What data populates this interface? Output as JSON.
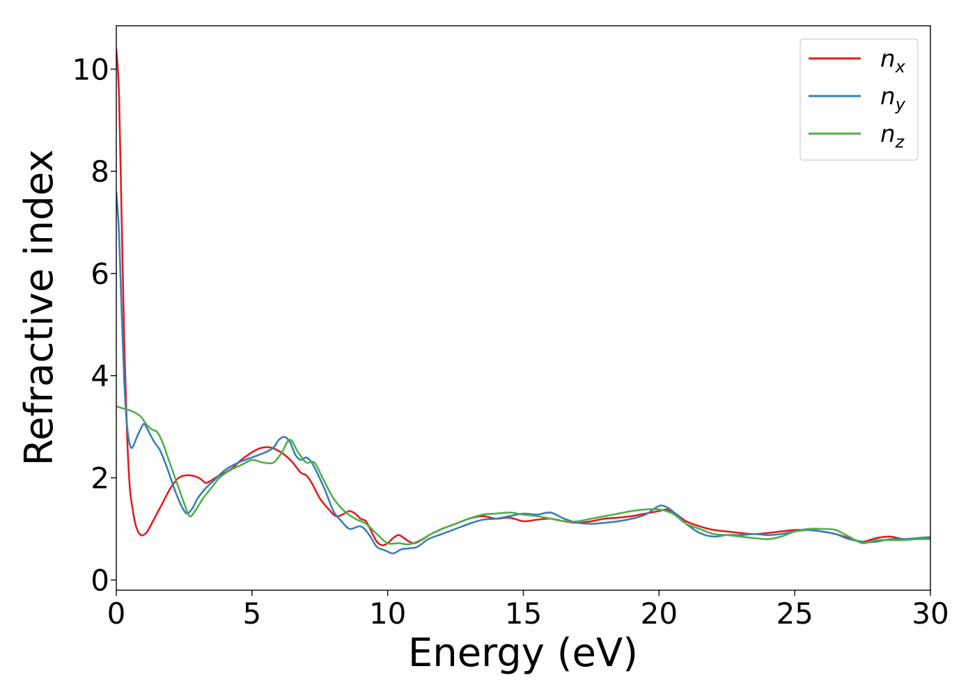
{
  "chart_data": {
    "type": "line",
    "title": "",
    "xlabel": "Energy (eV)",
    "ylabel": "Refractive index",
    "xlim": [
      0,
      30
    ],
    "ylim": [
      -0.2,
      10.85
    ],
    "xticks": [
      0,
      5,
      10,
      15,
      20,
      25,
      30
    ],
    "yticks": [
      0,
      2,
      4,
      6,
      8,
      10
    ],
    "grid": false,
    "legend_position": "top-right",
    "series": [
      {
        "name": "n",
        "subscript": "x",
        "color": "#e41a1c",
        "x": [
          0,
          0.1,
          0.2,
          0.3,
          0.4,
          0.5,
          0.6,
          0.7,
          0.8,
          0.9,
          1.0,
          1.1,
          1.2,
          1.3,
          1.5,
          1.7,
          2.0,
          2.3,
          2.6,
          2.9,
          3.1,
          3.3,
          3.5,
          3.8,
          4.0,
          4.3,
          4.6,
          5.0,
          5.3,
          5.6,
          5.9,
          6.2,
          6.5,
          6.8,
          7.0,
          7.2,
          7.5,
          7.8,
          8.1,
          8.4,
          8.6,
          8.8,
          9.0,
          9.2,
          9.4,
          9.6,
          9.8,
          10.0,
          10.2,
          10.4,
          10.6,
          10.8,
          11.0,
          11.3,
          11.6,
          12.0,
          12.5,
          13.0,
          13.5,
          14.0,
          14.5,
          15.0,
          15.5,
          16.0,
          16.5,
          17.0,
          17.5,
          18.0,
          18.5,
          19.0,
          19.5,
          20.0,
          20.3,
          20.6,
          21.0,
          21.5,
          22.0,
          22.5,
          23.0,
          23.5,
          24.0,
          24.5,
          25.0,
          25.5,
          26.0,
          26.5,
          27.0,
          27.5,
          28.0,
          28.5,
          29.0,
          29.5,
          30.0
        ],
        "y": [
          10.4,
          9.5,
          7.0,
          4.5,
          2.8,
          1.8,
          1.4,
          1.1,
          0.95,
          0.88,
          0.88,
          0.92,
          1.0,
          1.1,
          1.3,
          1.5,
          1.8,
          2.0,
          2.05,
          2.03,
          1.98,
          1.9,
          1.95,
          2.05,
          2.1,
          2.2,
          2.35,
          2.5,
          2.58,
          2.6,
          2.55,
          2.45,
          2.3,
          2.1,
          2.05,
          1.9,
          1.6,
          1.4,
          1.25,
          1.3,
          1.35,
          1.3,
          1.2,
          1.15,
          0.95,
          0.75,
          0.68,
          0.72,
          0.82,
          0.88,
          0.82,
          0.75,
          0.72,
          0.8,
          0.9,
          1.0,
          1.1,
          1.2,
          1.25,
          1.2,
          1.22,
          1.15,
          1.18,
          1.2,
          1.15,
          1.12,
          1.15,
          1.2,
          1.22,
          1.25,
          1.3,
          1.35,
          1.38,
          1.3,
          1.15,
          1.05,
          0.98,
          0.95,
          0.92,
          0.9,
          0.92,
          0.95,
          0.98,
          0.98,
          0.95,
          0.9,
          0.82,
          0.75,
          0.82,
          0.85,
          0.8,
          0.8,
          0.82
        ]
      },
      {
        "name": "n",
        "subscript": "y",
        "color": "#377eb8",
        "x": [
          0,
          0.1,
          0.2,
          0.3,
          0.4,
          0.5,
          0.6,
          0.8,
          1.0,
          1.1,
          1.2,
          1.4,
          1.6,
          1.8,
          2.0,
          2.2,
          2.4,
          2.6,
          2.8,
          3.0,
          3.3,
          3.6,
          4.0,
          4.5,
          5.0,
          5.5,
          5.8,
          6.0,
          6.2,
          6.4,
          6.6,
          6.8,
          7.0,
          7.2,
          7.4,
          7.7,
          8.0,
          8.3,
          8.6,
          9.0,
          9.3,
          9.6,
          9.9,
          10.2,
          10.5,
          10.8,
          11.1,
          11.5,
          12.0,
          12.5,
          13.0,
          13.5,
          14.0,
          14.5,
          15.0,
          15.5,
          16.0,
          16.5,
          17.0,
          17.5,
          18.0,
          18.5,
          19.0,
          19.5,
          20.0,
          20.3,
          20.6,
          21.0,
          21.5,
          22.0,
          22.5,
          23.0,
          23.5,
          24.0,
          24.5,
          25.0,
          25.5,
          26.0,
          26.5,
          27.0,
          27.5,
          28.0,
          28.5,
          29.0,
          29.5,
          30.0
        ],
        "y": [
          7.6,
          6.8,
          5.2,
          3.8,
          3.0,
          2.65,
          2.6,
          2.85,
          3.05,
          3.0,
          2.9,
          2.7,
          2.55,
          2.3,
          2.0,
          1.7,
          1.45,
          1.3,
          1.4,
          1.6,
          1.8,
          1.95,
          2.15,
          2.3,
          2.4,
          2.5,
          2.6,
          2.75,
          2.8,
          2.7,
          2.45,
          2.35,
          2.4,
          2.3,
          2.1,
          1.75,
          1.35,
          1.15,
          1.0,
          1.05,
          0.9,
          0.65,
          0.58,
          0.52,
          0.6,
          0.62,
          0.65,
          0.8,
          0.9,
          1.0,
          1.1,
          1.18,
          1.2,
          1.25,
          1.3,
          1.28,
          1.32,
          1.2,
          1.12,
          1.1,
          1.12,
          1.15,
          1.2,
          1.28,
          1.45,
          1.42,
          1.3,
          1.1,
          0.92,
          0.85,
          0.88,
          0.88,
          0.9,
          0.88,
          0.9,
          0.95,
          0.98,
          0.95,
          0.9,
          0.8,
          0.75,
          0.75,
          0.8,
          0.8,
          0.82,
          0.84
        ]
      },
      {
        "name": "n",
        "subscript": "z",
        "color": "#4daf4a",
        "x": [
          0,
          0.3,
          0.6,
          0.9,
          1.1,
          1.3,
          1.5,
          1.7,
          1.9,
          2.1,
          2.3,
          2.5,
          2.7,
          2.9,
          3.2,
          3.5,
          3.8,
          4.2,
          4.6,
          5.0,
          5.4,
          5.8,
          6.1,
          6.4,
          6.7,
          7.0,
          7.3,
          7.6,
          8.0,
          8.4,
          8.8,
          9.2,
          9.6,
          10.0,
          10.4,
          10.8,
          11.2,
          11.6,
          12.0,
          12.5,
          13.0,
          13.5,
          14.0,
          14.5,
          15.0,
          15.5,
          16.0,
          16.5,
          17.0,
          17.5,
          18.0,
          18.5,
          19.0,
          19.5,
          20.0,
          20.5,
          21.0,
          21.5,
          22.0,
          22.5,
          23.0,
          23.5,
          24.0,
          24.5,
          25.0,
          25.5,
          26.0,
          26.5,
          27.0,
          27.5,
          28.0,
          28.5,
          29.0,
          29.5,
          30.0
        ],
        "y": [
          3.4,
          3.35,
          3.3,
          3.2,
          3.05,
          2.95,
          2.9,
          2.7,
          2.4,
          2.1,
          1.8,
          1.5,
          1.25,
          1.35,
          1.6,
          1.8,
          2.0,
          2.15,
          2.25,
          2.35,
          2.3,
          2.3,
          2.5,
          2.75,
          2.5,
          2.3,
          2.3,
          2.0,
          1.6,
          1.35,
          1.2,
          1.1,
          0.9,
          0.72,
          0.72,
          0.7,
          0.78,
          0.9,
          1.0,
          1.1,
          1.2,
          1.28,
          1.3,
          1.32,
          1.28,
          1.25,
          1.2,
          1.15,
          1.15,
          1.2,
          1.25,
          1.3,
          1.35,
          1.38,
          1.38,
          1.3,
          1.1,
          1.0,
          0.9,
          0.88,
          0.85,
          0.82,
          0.8,
          0.85,
          0.95,
          1.0,
          1.0,
          0.98,
          0.85,
          0.72,
          0.78,
          0.78,
          0.78,
          0.8,
          0.8
        ]
      }
    ]
  }
}
